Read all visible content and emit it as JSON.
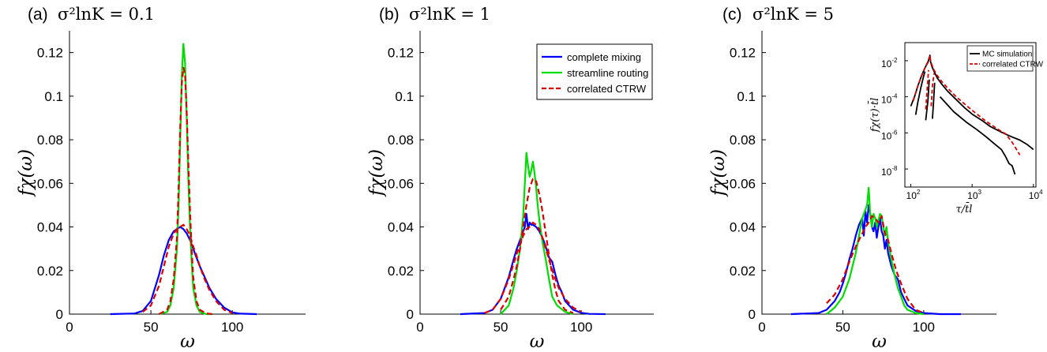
{
  "chart_data": [
    {
      "type": "line",
      "panel_label": "(a)",
      "title_math": "σ²lnK = 0.1",
      "xlabel": "ω",
      "ylabel": "fχ(ω)",
      "xlim": [
        0,
        145
      ],
      "ylim": [
        0,
        0.13
      ],
      "xticks": [
        "0",
        "50",
        "100"
      ],
      "yticks": [
        "0",
        "0.02",
        "0.04",
        "0.06",
        "0.08",
        "0.1",
        "0.12"
      ],
      "series": [
        {
          "name": "complete mixing",
          "color": "#0000ff",
          "dash": false,
          "x": [
            25,
            40,
            45,
            50,
            55,
            58,
            61,
            64,
            66,
            68,
            70,
            72,
            74,
            76,
            78,
            80,
            83,
            86,
            90,
            95,
            100,
            105,
            115
          ],
          "y": [
            0,
            0.0003,
            0.0015,
            0.006,
            0.018,
            0.027,
            0.034,
            0.038,
            0.039,
            0.04,
            0.039,
            0.037,
            0.034,
            0.03,
            0.026,
            0.022,
            0.017,
            0.012,
            0.007,
            0.003,
            0.0008,
            0.0002,
            0
          ]
        },
        {
          "name": "streamline routing",
          "color": "#00dd00",
          "dash": false,
          "x": [
            55,
            60,
            62,
            64,
            66,
            67,
            68,
            69,
            70,
            71,
            72,
            73,
            74,
            75,
            76,
            78,
            80,
            84,
            88
          ],
          "y": [
            0,
            0.001,
            0.004,
            0.012,
            0.03,
            0.05,
            0.08,
            0.11,
            0.124,
            0.115,
            0.09,
            0.062,
            0.04,
            0.024,
            0.012,
            0.004,
            0.001,
            0,
            0
          ]
        },
        {
          "name": "correlated CTRW",
          "color": "#dd0000",
          "dash": true,
          "x": [
            55,
            60,
            62,
            64,
            66,
            67,
            68,
            69,
            70,
            71,
            72,
            73,
            74,
            75,
            76,
            78,
            80,
            84,
            88
          ],
          "y": [
            0,
            0.002,
            0.006,
            0.016,
            0.035,
            0.058,
            0.085,
            0.106,
            0.113,
            0.11,
            0.092,
            0.07,
            0.048,
            0.03,
            0.017,
            0.006,
            0.002,
            0.0003,
            0
          ]
        },
        {
          "name": "correlated CTRW",
          "color": "#dd0000",
          "dash": true,
          "x": [
            45,
            50,
            55,
            58,
            61,
            64,
            66,
            68,
            70,
            72,
            74,
            76,
            78,
            80,
            83,
            86,
            90,
            95,
            100
          ],
          "y": [
            0.001,
            0.004,
            0.013,
            0.022,
            0.031,
            0.037,
            0.039,
            0.04,
            0.041,
            0.039,
            0.036,
            0.031,
            0.027,
            0.022,
            0.016,
            0.011,
            0.006,
            0.002,
            0.0005
          ]
        }
      ]
    },
    {
      "type": "line",
      "panel_label": "(b)",
      "title_math": "σ²lnK = 1",
      "xlabel": "ω",
      "ylabel": "fχ(ω)",
      "xlim": [
        0,
        145
      ],
      "ylim": [
        0,
        0.13
      ],
      "xticks": [
        "0",
        "50",
        "100"
      ],
      "yticks": [
        "0",
        "0.02",
        "0.04",
        "0.06",
        "0.08",
        "0.1",
        "0.12"
      ],
      "legend": {
        "position": "top-right",
        "entries": [
          "complete mixing",
          "streamline routing",
          "correlated CTRW"
        ]
      },
      "series": [
        {
          "name": "complete mixing",
          "color": "#0000ff",
          "dash": false,
          "x": [
            25,
            40,
            45,
            50,
            55,
            58,
            60,
            62,
            64,
            65,
            66,
            67,
            68,
            69,
            70,
            72,
            74,
            76,
            78,
            80,
            82,
            84,
            86,
            88,
            90,
            95,
            100,
            105,
            115
          ],
          "y": [
            0,
            0.0005,
            0.002,
            0.007,
            0.017,
            0.025,
            0.03,
            0.034,
            0.038,
            0.04,
            0.046,
            0.039,
            0.042,
            0.041,
            0.041,
            0.04,
            0.038,
            0.035,
            0.031,
            0.026,
            0.024,
            0.018,
            0.013,
            0.01,
            0.006,
            0.002,
            0.0006,
            0.0001,
            0
          ]
        },
        {
          "name": "streamline routing",
          "color": "#00dd00",
          "dash": false,
          "x": [
            50,
            55,
            58,
            60,
            62,
            64,
            65,
            66,
            67,
            68,
            69,
            70,
            71,
            72,
            73,
            74,
            76,
            78,
            80,
            82,
            85,
            90,
            95
          ],
          "y": [
            0,
            0.004,
            0.012,
            0.02,
            0.03,
            0.045,
            0.06,
            0.074,
            0.068,
            0.063,
            0.066,
            0.07,
            0.065,
            0.058,
            0.05,
            0.043,
            0.033,
            0.025,
            0.016,
            0.008,
            0.004,
            0.001,
            0
          ]
        },
        {
          "name": "correlated CTRW",
          "color": "#dd0000",
          "dash": true,
          "x": [
            50,
            55,
            58,
            60,
            62,
            64,
            66,
            68,
            70,
            72,
            74,
            76,
            78,
            80,
            82,
            84,
            86,
            90,
            95
          ],
          "y": [
            0.002,
            0.008,
            0.016,
            0.022,
            0.03,
            0.04,
            0.05,
            0.058,
            0.062,
            0.061,
            0.055,
            0.047,
            0.037,
            0.027,
            0.018,
            0.011,
            0.006,
            0.002,
            0.0005
          ]
        },
        {
          "name": "correlated CTRW",
          "color": "#dd0000",
          "dash": true,
          "x": [
            40,
            45,
            50,
            55,
            58,
            61,
            64,
            66,
            68,
            70,
            72,
            74,
            76,
            78,
            80,
            83,
            86,
            90,
            95,
            100
          ],
          "y": [
            0.0005,
            0.002,
            0.007,
            0.016,
            0.023,
            0.03,
            0.036,
            0.039,
            0.04,
            0.042,
            0.041,
            0.039,
            0.035,
            0.03,
            0.025,
            0.018,
            0.012,
            0.007,
            0.003,
            0.001
          ]
        }
      ]
    },
    {
      "type": "line",
      "panel_label": "(c)",
      "title_math": "σ²lnK = 5",
      "xlabel": "ω",
      "ylabel": "fχ(ω)",
      "xlim": [
        0,
        145
      ],
      "ylim": [
        0,
        0.13
      ],
      "xticks": [
        "0",
        "50",
        "100"
      ],
      "yticks": [
        "0",
        "0.02",
        "0.04",
        "0.06",
        "0.08",
        "0.1",
        "0.12"
      ],
      "series": [
        {
          "name": "complete mixing",
          "color": "#0000ff",
          "dash": false,
          "x": [
            18,
            35,
            40,
            45,
            48,
            50,
            52,
            54,
            56,
            58,
            60,
            62,
            63,
            64,
            65,
            66,
            67,
            68,
            69,
            70,
            71,
            72,
            73,
            74,
            75,
            76,
            77,
            78,
            80,
            82,
            84,
            86,
            88,
            90,
            95,
            100,
            110,
            123
          ],
          "y": [
            0,
            0.0005,
            0.002,
            0.006,
            0.01,
            0.014,
            0.019,
            0.025,
            0.03,
            0.036,
            0.041,
            0.044,
            0.036,
            0.047,
            0.042,
            0.05,
            0.046,
            0.04,
            0.038,
            0.042,
            0.035,
            0.04,
            0.044,
            0.038,
            0.036,
            0.03,
            0.034,
            0.028,
            0.022,
            0.018,
            0.016,
            0.01,
            0.007,
            0.004,
            0.0015,
            0.0005,
            0,
            0
          ]
        },
        {
          "name": "streamline routing",
          "color": "#00dd00",
          "dash": false,
          "x": [
            40,
            45,
            50,
            54,
            56,
            58,
            60,
            62,
            64,
            65,
            66,
            67,
            68,
            69,
            70,
            71,
            72,
            73,
            74,
            75,
            76,
            77,
            78,
            80,
            82,
            84,
            86,
            88,
            90,
            95,
            100
          ],
          "y": [
            0,
            0.003,
            0.008,
            0.016,
            0.022,
            0.028,
            0.036,
            0.044,
            0.048,
            0.05,
            0.058,
            0.045,
            0.04,
            0.046,
            0.044,
            0.04,
            0.043,
            0.046,
            0.045,
            0.04,
            0.036,
            0.04,
            0.033,
            0.025,
            0.018,
            0.012,
            0.008,
            0.004,
            0.002,
            0.0005,
            0
          ]
        },
        {
          "name": "correlated CTRW",
          "color": "#dd0000",
          "dash": true,
          "x": [
            40,
            45,
            50,
            54,
            58,
            62,
            64,
            66,
            68,
            70,
            72,
            74,
            76,
            78,
            80,
            83,
            86,
            90,
            95,
            100
          ],
          "y": [
            0.005,
            0.009,
            0.016,
            0.024,
            0.031,
            0.037,
            0.04,
            0.042,
            0.045,
            0.044,
            0.042,
            0.045,
            0.037,
            0.034,
            0.028,
            0.02,
            0.014,
            0.007,
            0.002,
            0.0005
          ]
        }
      ]
    },
    {
      "type": "line",
      "role": "inset",
      "xlabel": "τ/t̄l",
      "ylabel": "fχ(τ)·t̄l",
      "xscale": "log",
      "yscale": "log",
      "xlim": [
        80,
        11000
      ],
      "ylim": [
        1e-09,
        0.1
      ],
      "xtick_bases": [
        "10",
        "10",
        "10"
      ],
      "xtick_exps": [
        "2",
        "3",
        "4"
      ],
      "ytick_bases": [
        "10",
        "10",
        "10",
        "10"
      ],
      "ytick_exps": [
        "-2",
        "-4",
        "-6",
        "-8"
      ],
      "legend": {
        "position": "top-right",
        "entries": [
          "MC simulation",
          "correlated CTRW"
        ]
      },
      "series": [
        {
          "name": "MC simulation",
          "color": "#000000",
          "dash": false,
          "x": [
            100,
            115,
            130,
            150,
            170,
            190,
            205,
            210,
            220,
            240,
            270,
            320,
            400,
            550,
            750,
            1000,
            1500,
            2000,
            3000,
            4000,
            6000,
            8000,
            10000
          ],
          "y": [
            3e-05,
            0.0001,
            0.0004,
            0.0015,
            0.004,
            0.008,
            0.02,
            0.009,
            0.005,
            0.0025,
            0.0011,
            0.0005,
            0.0002,
            7e-05,
            2.5e-05,
            1.1e-05,
            4.5e-06,
            2.2e-06,
            1.1e-06,
            7e-07,
            4e-07,
            2.2e-07,
            1.2e-07
          ]
        },
        {
          "name": "MC simulation",
          "color": "#000000",
          "dash": false,
          "x": [
            120,
            130,
            145,
            160,
            170
          ],
          "y": [
            1e-05,
            5e-05,
            0.0003,
            0.0012,
            0.0025
          ]
        },
        {
          "name": "MC simulation",
          "color": "#000000",
          "dash": false,
          "x": [
            175,
            190,
            200
          ],
          "y": [
            5e-06,
            6e-05,
            0.0009
          ]
        },
        {
          "name": "MC simulation",
          "color": "#000000",
          "dash": false,
          "x": [
            225,
            235,
            245
          ],
          "y": [
            6e-06,
            5e-05,
            0.0006
          ]
        },
        {
          "name": "MC simulation",
          "color": "#000000",
          "dash": false,
          "x": [
            300,
            500,
            800,
            1200,
            1700,
            2300,
            3000,
            3500,
            4000,
            4500,
            5000
          ],
          "y": [
            0.0001,
            1.5e-05,
            4e-06,
            1.5e-06,
            6e-07,
            2.5e-07,
            1.2e-07,
            5e-08,
            2e-08,
            1.5e-08,
            5e-09
          ]
        },
        {
          "name": "correlated CTRW",
          "color": "#dd0000",
          "dash": true,
          "x": [
            110,
            130,
            150,
            170,
            190,
            200,
            205,
            210,
            220,
            240,
            270,
            320,
            400,
            550,
            750,
            1000,
            1500,
            2000,
            2500,
            3000,
            3500,
            4500,
            6000
          ],
          "y": [
            6e-05,
            0.0004,
            0.0014,
            0.004,
            0.009,
            0.012,
            0.02,
            0.01,
            0.006,
            0.003,
            0.0015,
            0.0007,
            0.0003,
            0.0001,
            4e-05,
            1.8e-05,
            6e-06,
            3e-06,
            1.8e-06,
            1.2e-06,
            9e-07,
            3e-07,
            6e-08
          ]
        },
        {
          "name": "correlated CTRW",
          "color": "#dd0000",
          "dash": true,
          "x": [
            175,
            185,
            195
          ],
          "y": [
            2e-05,
            0.0003,
            0.003
          ]
        },
        {
          "name": "correlated CTRW",
          "color": "#dd0000",
          "dash": true,
          "x": [
            215,
            225,
            240
          ],
          "y": [
            3e-05,
            0.0004,
            0.002
          ]
        }
      ]
    }
  ]
}
